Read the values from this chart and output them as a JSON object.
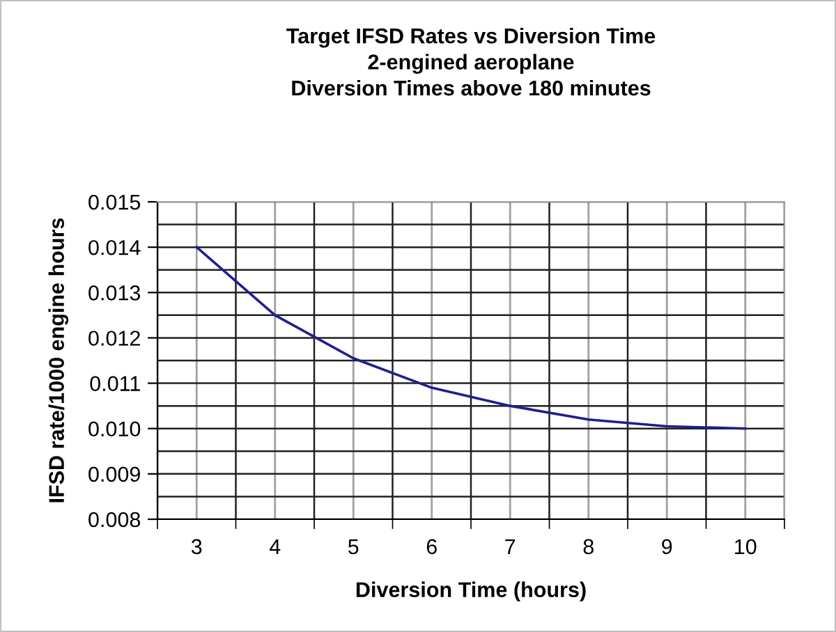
{
  "chart_data": {
    "type": "line",
    "title": "Target IFSD Rates vs Diversion Time\n2-engined aeroplane\nDiversion Times above 180 minutes",
    "xlabel": "Diversion Time (hours)",
    "ylabel": "IFSD rate/1000 engine hours",
    "categories": [
      "3",
      "4",
      "5",
      "6",
      "7",
      "8",
      "9",
      "10"
    ],
    "series": [
      {
        "color": "#1f1f8c",
        "values": [
          0.014,
          0.0125,
          0.01155,
          0.0109,
          0.0105,
          0.0102,
          0.01005,
          0.01
        ]
      }
    ],
    "ylim": [
      0.008,
      0.015
    ],
    "yticks": [
      {
        "value": 0.008,
        "label": "0.008"
      },
      {
        "value": 0.009,
        "label": "0.009"
      },
      {
        "value": 0.01,
        "label": "0.010"
      },
      {
        "value": 0.011,
        "label": "0.011"
      },
      {
        "value": 0.012,
        "label": "0.012"
      },
      {
        "value": 0.013,
        "label": "0.013"
      },
      {
        "value": 0.014,
        "label": "0.014"
      },
      {
        "value": 0.015,
        "label": "0.015"
      }
    ],
    "grid": true,
    "marker": "none",
    "line_style": "solid",
    "legend": false
  }
}
